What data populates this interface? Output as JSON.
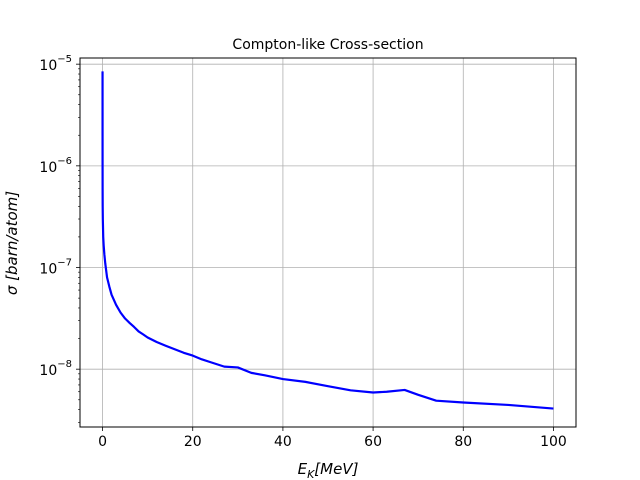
{
  "chart_data": {
    "type": "line",
    "title": "Compton-like Cross-section",
    "xlabel": {
      "base": "E",
      "sub": "K",
      "rest": "[MeV]"
    },
    "ylabel": "σ [barn/atom]",
    "xlim": [
      -5,
      105
    ],
    "ylim": [
      2.7e-09,
      1.15e-05
    ],
    "yscale": "log",
    "grid": true,
    "x_ticks": [
      0,
      20,
      40,
      60,
      80,
      100
    ],
    "x_tick_labels": [
      "0",
      "20",
      "40",
      "60",
      "80",
      "100"
    ],
    "y_ticks": [
      {
        "value": 1e-08,
        "base": "10",
        "exp": "−8"
      },
      {
        "value": 1e-07,
        "base": "10",
        "exp": "−7"
      },
      {
        "value": 1e-06,
        "base": "10",
        "exp": "−6"
      },
      {
        "value": 1e-05,
        "base": "10",
        "exp": "−5"
      }
    ],
    "series": [
      {
        "color": "#0000ff",
        "x": [
          0.0,
          0.001,
          0.003,
          0.007,
          0.015,
          0.03,
          0.06,
          0.1,
          0.15,
          0.25,
          0.4,
          0.6,
          1.0,
          1.5,
          2,
          3,
          4,
          5,
          6,
          7,
          8,
          9,
          10,
          12,
          14,
          16,
          18,
          20,
          22,
          24,
          27,
          30,
          33,
          36,
          40,
          45,
          50,
          55,
          60,
          63,
          67,
          70,
          74,
          80,
          90,
          100
        ],
        "y": [
          8.5e-06,
          5e-06,
          2e-06,
          1e-06,
          6e-07,
          4e-07,
          3e-07,
          2.5e-07,
          2e-07,
          1.65e-07,
          1.35e-07,
          1.1e-07,
          8e-08,
          6.5e-08,
          5.4e-08,
          4.3e-08,
          3.6e-08,
          3.15e-08,
          2.85e-08,
          2.6e-08,
          2.35e-08,
          2.2e-08,
          2.05e-08,
          1.85e-08,
          1.7e-08,
          1.57e-08,
          1.45e-08,
          1.36e-08,
          1.25e-08,
          1.17e-08,
          1.06e-08,
          1.04e-08,
          9.2e-09,
          8.7e-09,
          8e-09,
          7.5e-09,
          6.8e-09,
          6.2e-09,
          5.9e-09,
          6e-09,
          6.25e-09,
          5.6e-09,
          4.9e-09,
          4.7e-09,
          4.45e-09,
          4.1e-09
        ]
      }
    ]
  }
}
